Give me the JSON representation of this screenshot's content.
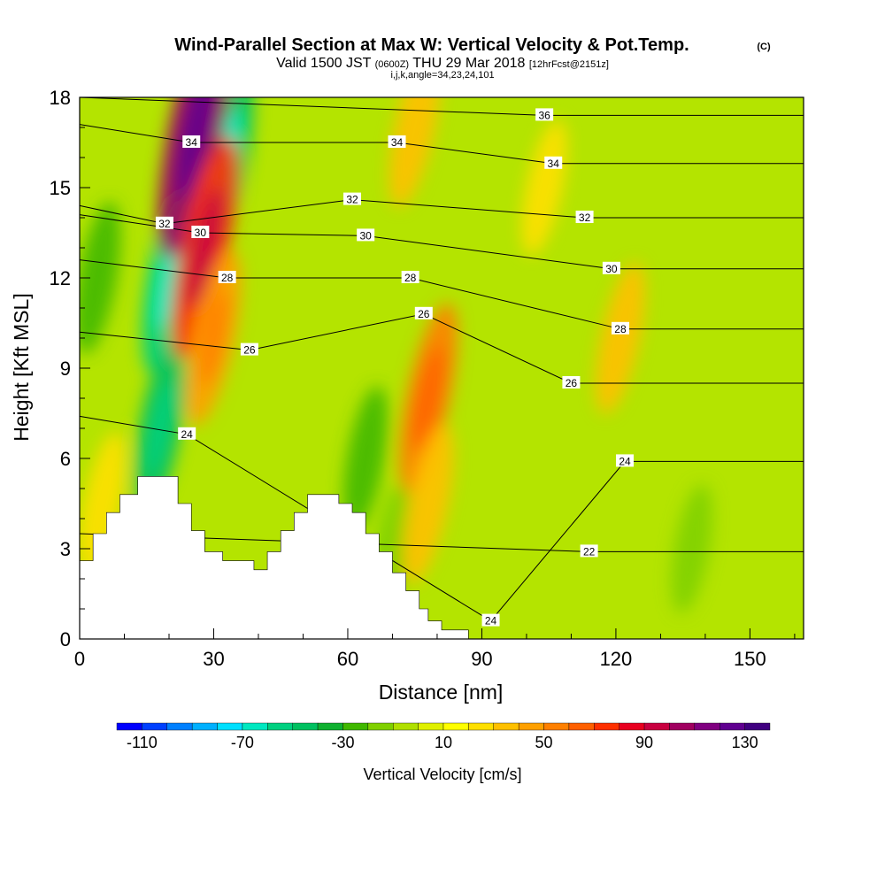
{
  "chart_data": {
    "type": "heatmap",
    "title": "Wind-Parallel Section at Max W: Vertical Velocity & Pot.Temp.",
    "title_mark": "(C)",
    "subtitle": {
      "prefix": "Valid 1500 JST",
      "zulu": "(0600Z)",
      "date": "THU 29 Mar 2018",
      "fcst": "[12hrFcst@2151z]"
    },
    "subtitle2": "i,j,k,angle=34,23,24,101",
    "xlabel": "Distance [nm]",
    "ylabel": "Height [Kft MSL]",
    "xlim": [
      0,
      162
    ],
    "ylim": [
      0,
      18
    ],
    "x_ticks": [
      0,
      30,
      60,
      90,
      120,
      150
    ],
    "y_ticks": [
      0,
      3,
      6,
      9,
      12,
      15,
      18
    ],
    "colorbar": {
      "label": "Vertical Velocity [cm/s]",
      "min": -120,
      "max": 140,
      "step": 10,
      "tick_labels": [
        -110,
        -70,
        -30,
        10,
        50,
        90,
        130
      ],
      "colors": [
        "#0000ff",
        "#0040ff",
        "#0080ff",
        "#00b0ff",
        "#00e0ff",
        "#00e8c0",
        "#00d080",
        "#00c060",
        "#10b030",
        "#40b800",
        "#80d000",
        "#b0e000",
        "#e0f000",
        "#ffff00",
        "#ffe000",
        "#ffc000",
        "#ffa000",
        "#ff8000",
        "#ff6000",
        "#ff3000",
        "#e80020",
        "#c80040",
        "#a00060",
        "#800080",
        "#600090",
        "#400080"
      ]
    },
    "w_updrafts": [
      {
        "x": 26,
        "z": 17,
        "w": 100
      },
      {
        "x": 28,
        "z": 13,
        "w": 75
      },
      {
        "x": 30,
        "z": 10,
        "w": 45
      },
      {
        "x": 75,
        "z": 17,
        "w": 35
      },
      {
        "x": 78,
        "z": 8,
        "w": 55
      },
      {
        "x": 78,
        "z": 4.5,
        "w": 35
      },
      {
        "x": 121,
        "z": 10,
        "w": 30
      },
      {
        "x": 104,
        "z": 15,
        "w": 20
      },
      {
        "x": 5,
        "z": 4.5,
        "w": 25
      }
    ],
    "w_downdrafts": [
      {
        "x": 20,
        "z": 12,
        "w": -55
      },
      {
        "x": 18,
        "z": 7,
        "w": -45
      },
      {
        "x": 33,
        "z": 16,
        "w": -50
      },
      {
        "x": 64,
        "z": 6,
        "w": -25
      },
      {
        "x": 70,
        "z": 3,
        "w": -20
      },
      {
        "x": 4,
        "z": 12,
        "w": -30
      },
      {
        "x": 137,
        "z": 3,
        "w": -15
      }
    ],
    "theta_contours": [
      {
        "label": "36",
        "x": 104,
        "z": 17.4
      },
      {
        "label": "34",
        "x": 25,
        "z": 16.5
      },
      {
        "label": "34",
        "x": 71,
        "z": 16.5
      },
      {
        "label": "34",
        "x": 106,
        "z": 15.8
      },
      {
        "label": "32",
        "x": 19,
        "z": 13.8
      },
      {
        "label": "32",
        "x": 61,
        "z": 14.6
      },
      {
        "label": "32",
        "x": 113,
        "z": 14.0
      },
      {
        "label": "30",
        "x": 27,
        "z": 13.5
      },
      {
        "label": "30",
        "x": 64,
        "z": 13.4
      },
      {
        "label": "30",
        "x": 119,
        "z": 12.3
      },
      {
        "label": "28",
        "x": 33,
        "z": 12.0
      },
      {
        "label": "28",
        "x": 74,
        "z": 12.0
      },
      {
        "label": "28",
        "x": 121,
        "z": 10.3
      },
      {
        "label": "26",
        "x": 38,
        "z": 9.6
      },
      {
        "label": "26",
        "x": 77,
        "z": 10.8
      },
      {
        "label": "26",
        "x": 110,
        "z": 8.5
      },
      {
        "label": "24",
        "x": 24,
        "z": 6.8
      },
      {
        "label": "24",
        "x": 122,
        "z": 5.9
      },
      {
        "label": "24",
        "x": 92,
        "z": 0.6
      },
      {
        "label": "22",
        "x": 114,
        "z": 2.9
      }
    ],
    "terrain": [
      [
        0,
        2.6
      ],
      [
        3,
        2.6
      ],
      [
        3,
        3.5
      ],
      [
        6,
        3.5
      ],
      [
        6,
        4.2
      ],
      [
        9,
        4.2
      ],
      [
        9,
        4.8
      ],
      [
        13,
        4.8
      ],
      [
        13,
        5.4
      ],
      [
        22,
        5.4
      ],
      [
        22,
        4.5
      ],
      [
        25,
        4.5
      ],
      [
        25,
        3.6
      ],
      [
        28,
        3.6
      ],
      [
        28,
        2.9
      ],
      [
        32,
        2.9
      ],
      [
        32,
        2.6
      ],
      [
        39,
        2.6
      ],
      [
        39,
        2.3
      ],
      [
        42,
        2.3
      ],
      [
        42,
        2.9
      ],
      [
        45,
        2.9
      ],
      [
        45,
        3.6
      ],
      [
        48,
        3.6
      ],
      [
        48,
        4.2
      ],
      [
        51,
        4.2
      ],
      [
        51,
        4.8
      ],
      [
        58,
        4.8
      ],
      [
        58,
        4.5
      ],
      [
        61,
        4.5
      ],
      [
        61,
        4.2
      ],
      [
        64,
        4.2
      ],
      [
        64,
        3.5
      ],
      [
        67,
        3.5
      ],
      [
        67,
        2.9
      ],
      [
        70,
        2.9
      ],
      [
        70,
        2.2
      ],
      [
        73,
        2.2
      ],
      [
        73,
        1.6
      ],
      [
        76,
        1.6
      ],
      [
        76,
        1.0
      ],
      [
        78,
        1.0
      ],
      [
        78,
        0.6
      ],
      [
        81,
        0.6
      ],
      [
        81,
        0.3
      ],
      [
        87,
        0.3
      ],
      [
        87,
        0.0
      ]
    ]
  }
}
